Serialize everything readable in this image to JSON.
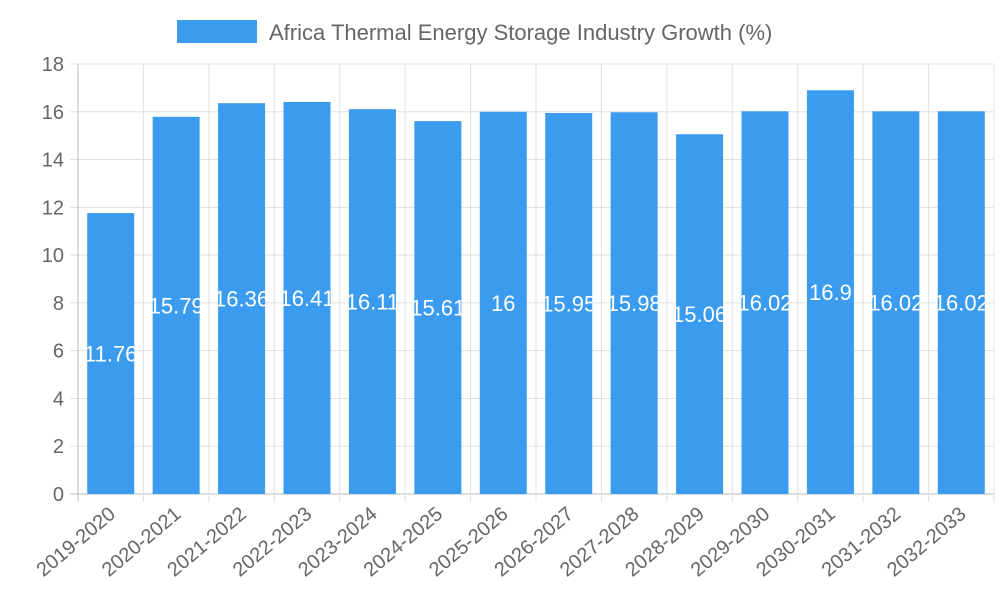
{
  "chart_data": {
    "type": "bar",
    "title": "",
    "legend": {
      "label": "Africa Thermal Energy Storage Industry Growth (%)",
      "placement": "top"
    },
    "categories": [
      "2019-2020",
      "2020-2021",
      "2021-2022",
      "2022-2023",
      "2023-2024",
      "2024-2025",
      "2025-2026",
      "2026-2027",
      "2027-2028",
      "2028-2029",
      "2029-2030",
      "2030-2031",
      "2031-2032",
      "2032-2033"
    ],
    "values": [
      11.76,
      15.79,
      16.36,
      16.41,
      16.11,
      15.61,
      16,
      15.95,
      15.98,
      15.06,
      16.02,
      16.9,
      16.02,
      16.02
    ],
    "data_labels": [
      "11.76",
      "15.79",
      "16.36",
      "16.41",
      "16.11",
      "15.61",
      "16",
      "15.95",
      "15.98",
      "15.06",
      "16.02",
      "16.9",
      "16.02",
      "16.02"
    ],
    "xlabel": "",
    "ylabel": "",
    "ylim": [
      0,
      18
    ],
    "yticks": [
      "0",
      "2",
      "4",
      "6",
      "8",
      "10",
      "12",
      "14",
      "16",
      "18"
    ],
    "grid": true,
    "colors": {
      "bar": "#3a9bef",
      "grid": "#e0e0e0",
      "text": "#666666",
      "label": "#ffffff"
    }
  }
}
